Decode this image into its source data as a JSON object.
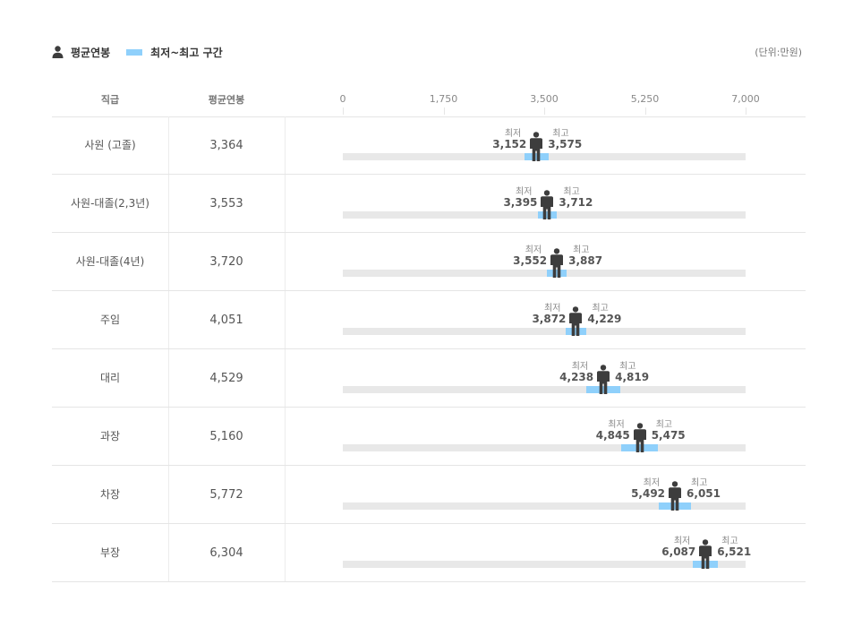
{
  "legend": {
    "avg_label": "평균연봉",
    "range_label": "최저~최고 구간",
    "person_icon": "person-icon"
  },
  "unit_label": "(단위:만원)",
  "headers": {
    "grade": "직급",
    "avg": "평균연봉"
  },
  "colors": {
    "range": "#8fd0fb",
    "track": "#e8e8e8",
    "person": "#3d3d3d"
  },
  "labels": {
    "min": "최저",
    "max": "최고"
  },
  "chart_data": {
    "type": "bar",
    "xlim": [
      0,
      7000
    ],
    "ticks": [
      0,
      1750,
      3500,
      5250,
      7000
    ],
    "tick_labels": [
      "0",
      "1,750",
      "3,500",
      "5,250",
      "7,000"
    ],
    "categories": [
      "사원 (고졸)",
      "사원-대졸(2,3년)",
      "사원-대졸(4년)",
      "주임",
      "대리",
      "과장",
      "차장",
      "부장"
    ],
    "avg_labels": [
      "3,364",
      "3,553",
      "3,720",
      "4,051",
      "4,529",
      "5,160",
      "5,772",
      "6,304"
    ],
    "series": [
      {
        "name": "평균연봉",
        "values": [
          3364,
          3553,
          3720,
          4051,
          4529,
          5160,
          5772,
          6304
        ]
      },
      {
        "name": "최저",
        "values": [
          3152,
          3395,
          3552,
          3872,
          4238,
          4845,
          5492,
          6087
        ]
      },
      {
        "name": "최고",
        "values": [
          3575,
          3712,
          3887,
          4229,
          4819,
          5475,
          6051,
          6521
        ]
      }
    ],
    "min_labels": [
      "3,152",
      "3,395",
      "3,552",
      "3,872",
      "4,238",
      "4,845",
      "5,492",
      "6,087"
    ],
    "max_labels": [
      "3,575",
      "3,712",
      "3,887",
      "4,229",
      "4,819",
      "5,475",
      "6,051",
      "6,521"
    ]
  }
}
